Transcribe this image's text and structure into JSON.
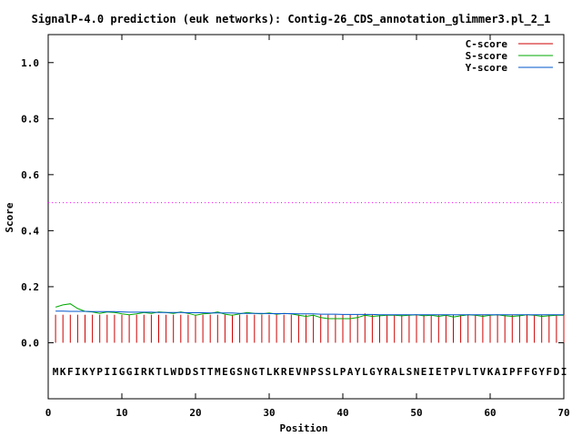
{
  "chart_data": {
    "type": "line",
    "title": "SignalP-4.0 prediction (euk networks): Contig-26_CDS_annotation_glimmer3.pl_2_1",
    "xlabel": "Position",
    "ylabel": "Score",
    "xlim": [
      0,
      70
    ],
    "ylim": [
      -0.2,
      1.1
    ],
    "xticks": [
      0,
      10,
      20,
      30,
      40,
      50,
      60,
      70
    ],
    "yticks": [
      0.0,
      0.2,
      0.4,
      0.6,
      0.8,
      1.0
    ],
    "xtick_labels": [
      "0",
      "10",
      "20",
      "30",
      "40",
      "50",
      "60",
      "70"
    ],
    "ytick_labels": [
      "0.0",
      "0.2",
      "0.4",
      "0.6",
      "0.8",
      "1.0"
    ],
    "legend_position": "top-right",
    "threshold": 0.5,
    "sequence": "MKFIKYPIIGGIRKTLWDDSTTMEGSNGTLKREVNPSSLPAYLGYRALSNEIETPVLTVKAIPFFGYFDI",
    "colors": {
      "c_score": "#cc0000",
      "s_score": "#00aa00",
      "y_score": "#0055cc",
      "threshold": "#ff00ff",
      "axis": "#000000"
    },
    "series": [
      {
        "name": "C-score",
        "style": "impulses",
        "x": [
          1,
          2,
          3,
          4,
          5,
          6,
          7,
          8,
          9,
          10,
          11,
          12,
          13,
          14,
          15,
          16,
          17,
          18,
          19,
          20,
          21,
          22,
          23,
          24,
          25,
          26,
          27,
          28,
          29,
          30,
          31,
          32,
          33,
          34,
          35,
          36,
          37,
          38,
          39,
          40,
          41,
          42,
          43,
          44,
          45,
          46,
          47,
          48,
          49,
          50,
          51,
          52,
          53,
          54,
          55,
          56,
          57,
          58,
          59,
          60,
          61,
          62,
          63,
          64,
          65,
          66,
          67,
          68,
          69,
          70
        ],
        "values": [
          0.1,
          0.1,
          0.1,
          0.1,
          0.1,
          0.1,
          0.1,
          0.1,
          0.1,
          0.1,
          0.1,
          0.1,
          0.1,
          0.1,
          0.1,
          0.1,
          0.1,
          0.1,
          0.1,
          0.1,
          0.1,
          0.1,
          0.1,
          0.1,
          0.1,
          0.1,
          0.1,
          0.1,
          0.1,
          0.1,
          0.1,
          0.1,
          0.1,
          0.1,
          0.1,
          0.1,
          0.1,
          0.1,
          0.1,
          0.1,
          0.1,
          0.1,
          0.105,
          0.1,
          0.1,
          0.1,
          0.1,
          0.1,
          0.1,
          0.1,
          0.1,
          0.1,
          0.1,
          0.1,
          0.1,
          0.1,
          0.1,
          0.1,
          0.1,
          0.1,
          0.1,
          0.1,
          0.1,
          0.1,
          0.1,
          0.1,
          0.1,
          0.1,
          0.1,
          0.1
        ]
      },
      {
        "name": "S-score",
        "style": "line",
        "x": [
          1,
          2,
          3,
          4,
          5,
          6,
          7,
          8,
          9,
          10,
          11,
          12,
          13,
          14,
          15,
          16,
          17,
          18,
          19,
          20,
          21,
          22,
          23,
          24,
          25,
          26,
          27,
          28,
          29,
          30,
          31,
          32,
          33,
          34,
          35,
          36,
          37,
          38,
          39,
          40,
          41,
          42,
          43,
          44,
          45,
          46,
          47,
          48,
          49,
          50,
          51,
          52,
          53,
          54,
          55,
          56,
          57,
          58,
          59,
          60,
          61,
          62,
          63,
          64,
          65,
          66,
          67,
          68,
          69,
          70
        ],
        "values": [
          0.127,
          0.135,
          0.139,
          0.122,
          0.112,
          0.11,
          0.105,
          0.11,
          0.108,
          0.103,
          0.1,
          0.103,
          0.108,
          0.105,
          0.11,
          0.108,
          0.105,
          0.11,
          0.105,
          0.098,
          0.103,
          0.105,
          0.11,
          0.102,
          0.098,
          0.103,
          0.108,
          0.105,
          0.103,
          0.106,
          0.102,
          0.105,
          0.103,
          0.098,
          0.094,
          0.098,
          0.09,
          0.086,
          0.086,
          0.086,
          0.086,
          0.09,
          0.098,
          0.094,
          0.096,
          0.098,
          0.098,
          0.096,
          0.098,
          0.1,
          0.096,
          0.098,
          0.094,
          0.098,
          0.092,
          0.096,
          0.1,
          0.098,
          0.094,
          0.098,
          0.1,
          0.096,
          0.094,
          0.096,
          0.1,
          0.098,
          0.094,
          0.096,
          0.098,
          0.098
        ]
      },
      {
        "name": "Y-score",
        "style": "line",
        "x": [
          1,
          2,
          3,
          4,
          5,
          6,
          7,
          8,
          9,
          10,
          11,
          12,
          13,
          14,
          15,
          16,
          17,
          18,
          19,
          20,
          21,
          22,
          23,
          24,
          25,
          26,
          27,
          28,
          29,
          30,
          31,
          32,
          33,
          34,
          35,
          36,
          37,
          38,
          39,
          40,
          41,
          42,
          43,
          44,
          45,
          46,
          47,
          48,
          49,
          50,
          51,
          52,
          53,
          54,
          55,
          56,
          57,
          58,
          59,
          60,
          61,
          62,
          63,
          64,
          65,
          66,
          67,
          68,
          69,
          70
        ],
        "values": [
          0.113,
          0.113,
          0.112,
          0.112,
          0.112,
          0.111,
          0.111,
          0.111,
          0.111,
          0.11,
          0.109,
          0.109,
          0.109,
          0.109,
          0.108,
          0.108,
          0.108,
          0.108,
          0.107,
          0.107,
          0.107,
          0.106,
          0.106,
          0.106,
          0.106,
          0.105,
          0.105,
          0.105,
          0.105,
          0.104,
          0.104,
          0.104,
          0.104,
          0.103,
          0.103,
          0.103,
          0.102,
          0.102,
          0.102,
          0.101,
          0.101,
          0.101,
          0.101,
          0.101,
          0.1,
          0.1,
          0.1,
          0.1,
          0.1,
          0.1,
          0.1,
          0.1,
          0.1,
          0.1,
          0.1,
          0.1,
          0.1,
          0.1,
          0.1,
          0.1,
          0.1,
          0.1,
          0.1,
          0.1,
          0.1,
          0.1,
          0.1,
          0.1,
          0.1,
          0.1
        ]
      }
    ]
  }
}
